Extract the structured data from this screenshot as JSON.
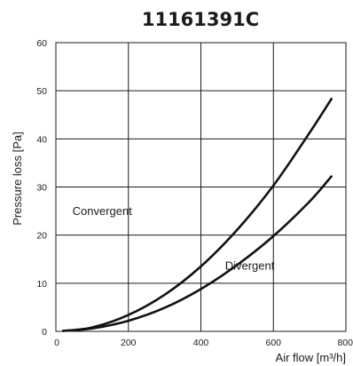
{
  "chart_data": {
    "type": "line",
    "title": "11161391C",
    "xlabel": "Air flow [m³/h]",
    "ylabel": "Pressure loss [Pa]",
    "xlim": [
      0,
      800
    ],
    "ylim": [
      0,
      60
    ],
    "x_ticks": [
      "0",
      "200",
      "400",
      "600",
      "800"
    ],
    "y_ticks": [
      "0",
      "10",
      "20",
      "30",
      "40",
      "50",
      "60"
    ],
    "grid": true,
    "series": [
      {
        "name": "Convergent",
        "x": [
          20,
          100,
          200,
          300,
          400,
          500,
          600,
          700,
          760
        ],
        "y": [
          0.1,
          0.8,
          3.4,
          7.6,
          13.5,
          21.1,
          30.3,
          41.3,
          48.3
        ]
      },
      {
        "name": "Divergent",
        "x": [
          20,
          100,
          200,
          300,
          400,
          500,
          600,
          700,
          760
        ],
        "y": [
          0.1,
          0.6,
          2.2,
          4.9,
          8.8,
          13.8,
          19.8,
          27.0,
          32.2
        ]
      }
    ]
  }
}
